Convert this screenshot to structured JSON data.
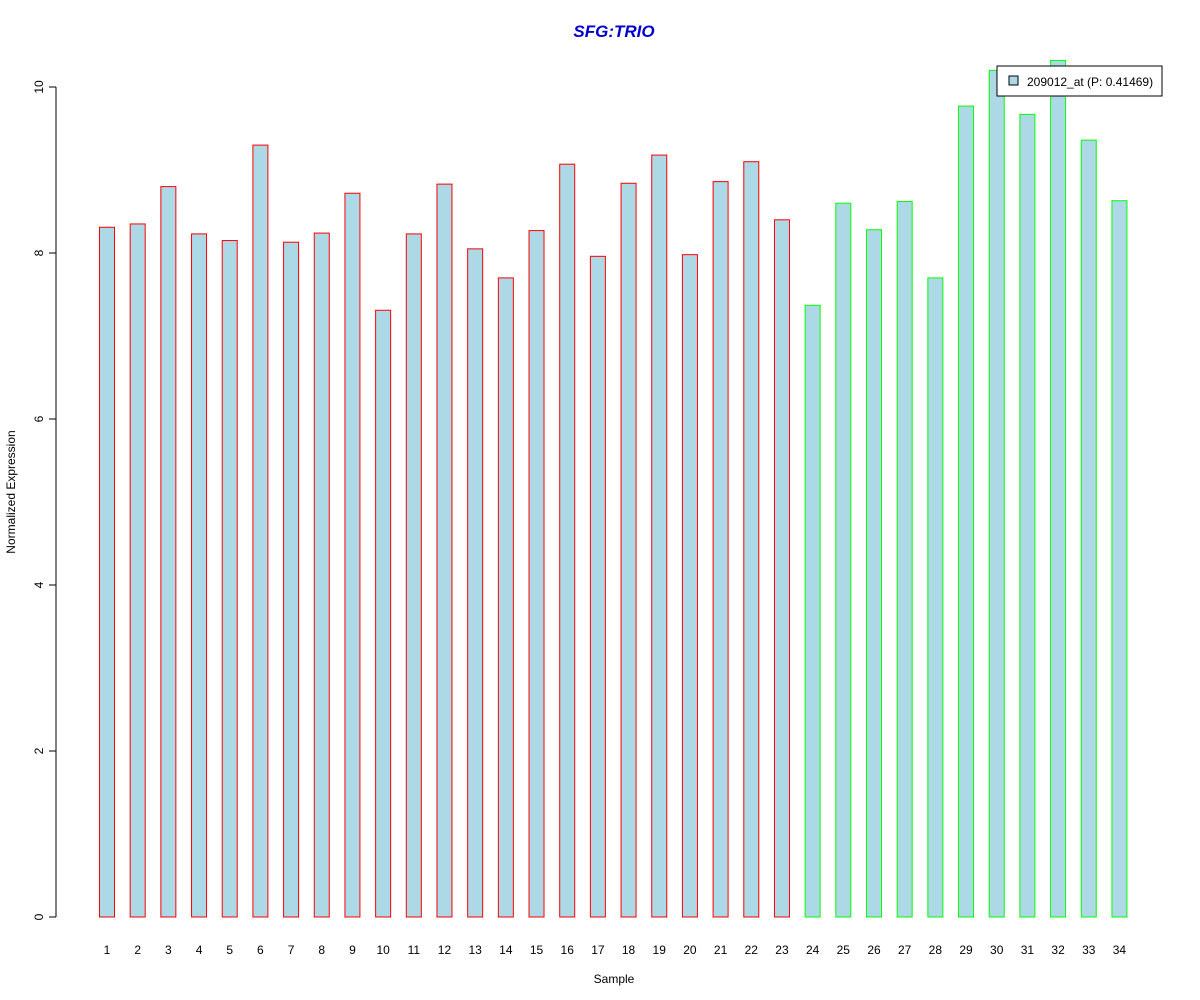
{
  "chart_data": {
    "type": "bar",
    "title": "SFG:TRIO",
    "xlabel": "Sample",
    "ylabel": "Normalized Expression",
    "ylim": [
      0,
      10
    ],
    "yticks": [
      0,
      2,
      4,
      6,
      8,
      10
    ],
    "categories": [
      "1",
      "2",
      "3",
      "4",
      "5",
      "6",
      "7",
      "8",
      "9",
      "10",
      "11",
      "12",
      "13",
      "14",
      "15",
      "16",
      "17",
      "18",
      "19",
      "20",
      "21",
      "22",
      "23",
      "24",
      "25",
      "26",
      "27",
      "28",
      "29",
      "30",
      "31",
      "32",
      "33",
      "34"
    ],
    "series": [
      {
        "name": "209012_at (P: 0.41469)",
        "values": [
          8.31,
          8.35,
          8.8,
          8.23,
          8.15,
          9.3,
          8.13,
          8.24,
          8.72,
          7.31,
          8.23,
          8.83,
          8.05,
          7.7,
          8.27,
          9.07,
          7.96,
          8.84,
          9.18,
          7.98,
          8.86,
          9.1,
          8.4,
          7.37,
          8.6,
          8.28,
          8.62,
          7.7,
          9.77,
          10.2,
          9.67,
          10.32,
          9.36,
          8.63
        ]
      }
    ],
    "group_split_after": 23,
    "grid": false,
    "legend_position": "top-right"
  },
  "colors": {
    "bar_fill": "#add8e6",
    "group1_border": "#ff0000",
    "group2_border": "#00ff00",
    "title": "#0000cd",
    "axis": "#000000"
  }
}
